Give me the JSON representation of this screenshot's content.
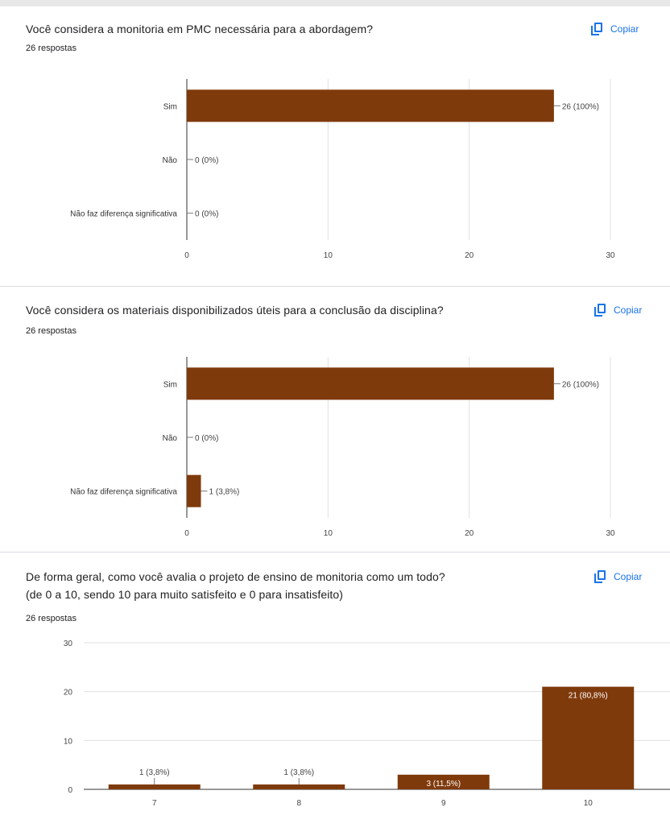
{
  "colors": {
    "bar": "#7f3a0b",
    "accent": "#1a73e8",
    "grid": "#e0e0e0",
    "axis": "#9e9e9e"
  },
  "copy_label": "Copiar",
  "questions": [
    {
      "title": "Você considera a monitoria em PMC necessária para a abordagem?",
      "count": "26 respostas"
    },
    {
      "title": "Você considera os materiais disponibilizados úteis para a conclusão da disciplina?",
      "count": "26 respostas"
    },
    {
      "title": "De forma geral, como você avalia o projeto de ensino de monitoria como um todo?",
      "subtitle": "(de 0 a 10, sendo 10 para muito satisfeito e 0 para insatisfeito)",
      "count": "26 respostas"
    }
  ],
  "chart_data": [
    {
      "type": "bar",
      "orientation": "horizontal",
      "categories": [
        "Sim",
        "Não",
        "Não faz diferença significativa"
      ],
      "values": [
        26,
        0,
        0
      ],
      "data_labels": [
        "26 (100%)",
        "0 (0%)",
        "0 (0%)"
      ],
      "xlim": [
        0,
        30
      ],
      "xticks": [
        "0",
        "10",
        "20",
        "30"
      ]
    },
    {
      "type": "bar",
      "orientation": "horizontal",
      "categories": [
        "Sim",
        "Não",
        "Não faz diferença significativa"
      ],
      "values": [
        26,
        0,
        1
      ],
      "data_labels": [
        "26 (100%)",
        "0 (0%)",
        "1 (3,8%)"
      ],
      "xlim": [
        0,
        30
      ],
      "xticks": [
        "0",
        "10",
        "20",
        "30"
      ]
    },
    {
      "type": "bar",
      "orientation": "vertical",
      "categories": [
        "7",
        "8",
        "9",
        "10"
      ],
      "values": [
        1,
        1,
        3,
        21
      ],
      "data_labels": [
        "1 (3,8%)",
        "1 (3,8%)",
        "3 (11,5%)",
        "21 (80,8%)"
      ],
      "ylim": [
        0,
        30
      ],
      "yticks": [
        "0",
        "10",
        "20",
        "30"
      ]
    }
  ]
}
